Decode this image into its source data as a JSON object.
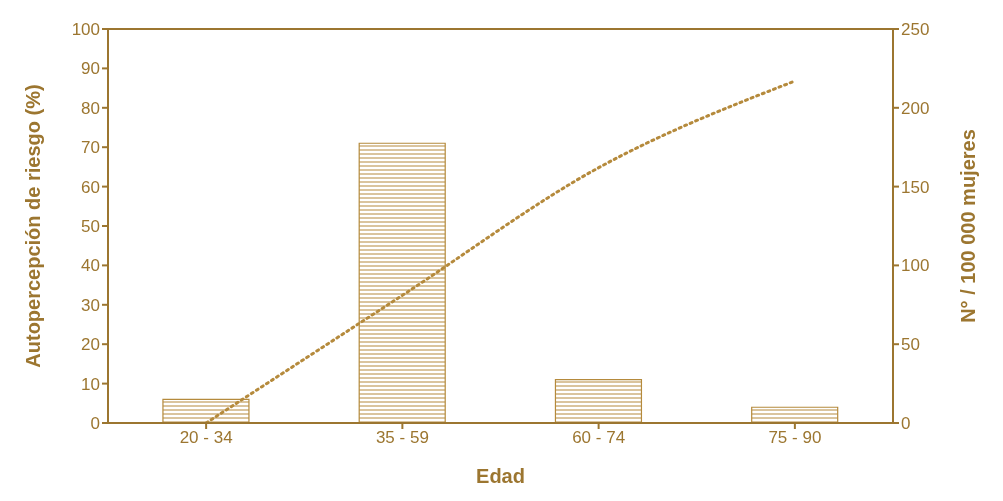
{
  "chart_data": {
    "type": "bar",
    "xlabel": "Edad",
    "ylabel": "Autopercepción de riesgo (%)",
    "y2label": "N° / 100 000 mujeres",
    "categories": [
      "20 - 34",
      "35 - 59",
      "60 - 74",
      "75 - 90"
    ],
    "series": [
      {
        "color": "#b58a3c",
        "values": [
          6,
          71,
          11,
          4
        ]
      },
      {
        "type": "line",
        "axis": "y2",
        "color": "#b58a3c",
        "line_style": "dotted",
        "values": [
          0,
          81,
          162,
          217
        ]
      }
    ],
    "ylim": [
      0,
      100
    ],
    "yticks": [
      0,
      10,
      20,
      30,
      40,
      50,
      60,
      70,
      80,
      90,
      100
    ],
    "y2lim": [
      0,
      250
    ],
    "y2ticks": [
      0,
      50,
      100,
      150,
      200,
      250
    ],
    "marker": "none"
  }
}
